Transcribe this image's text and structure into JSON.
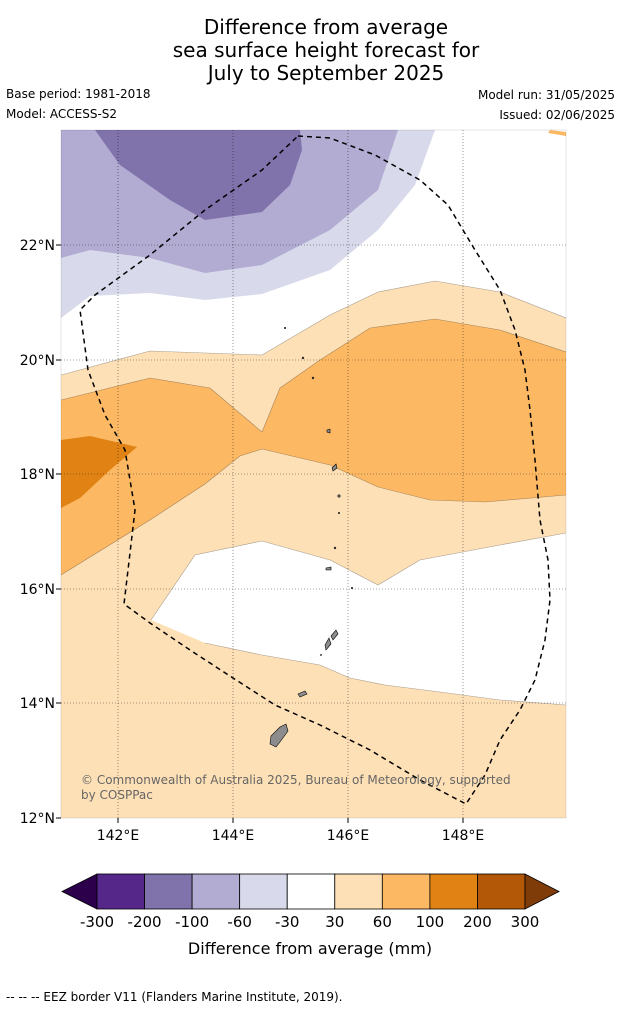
{
  "title": {
    "line1": "Difference from average",
    "line2": "sea surface height forecast for",
    "line3": "July to September 2025"
  },
  "meta": {
    "base_period": "Base period: 1981-2018",
    "model": "Model: ACCESS-S2",
    "model_run": "Model run: 31/05/2025",
    "issued": "Issued: 02/06/2025"
  },
  "map": {
    "lat_ticks": [
      "12°N",
      "14°N",
      "16°N",
      "18°N",
      "20°N",
      "22°N"
    ],
    "lon_ticks": [
      "142°E",
      "144°E",
      "146°E",
      "148°E"
    ],
    "copyright": "© Commonwealth of Australia 2025, Bureau of Meteorology, supported",
    "copyright2": "by COSPPac",
    "grid": true
  },
  "colorbar": {
    "ticks": [
      "-300",
      "-200",
      "-100",
      "-60",
      "-30",
      "30",
      "60",
      "100",
      "200",
      "300"
    ],
    "label": "Difference from average (mm)",
    "colors": [
      "#2d004b",
      "#542788",
      "#8073ac",
      "#b2abd2",
      "#d8daeb",
      "#ffffff",
      "#fee0b6",
      "#fdb863",
      "#e08214",
      "#b35806",
      "#7f3b08"
    ]
  },
  "footnote": "--  --  -- EEZ border V11 (Flanders Marine Institute, 2019)."
}
